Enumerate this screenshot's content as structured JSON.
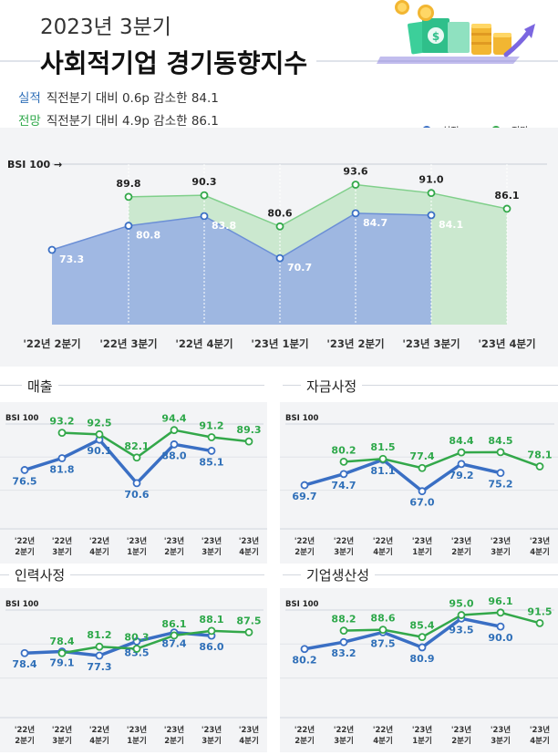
{
  "header": {
    "title_line1": "2023년 3분기",
    "title_line2": "사회적기업 경기동향지수"
  },
  "summary": [
    {
      "label": "실적",
      "text": "직전분기 대비 0.6p 감소한 84.1"
    },
    {
      "label": "전망",
      "text": "직전분기 대비 4.9p 감소한 86.1"
    }
  ],
  "colors": {
    "actual": "#3a6fc4",
    "forecast": "#33a84a",
    "actual_label": "#2f6fb8",
    "forecast_label": "#2ea84a",
    "actual_area": "#9bb4e2",
    "forecast_area": "#cbe8cf",
    "panel_bg": "#f3f4f6"
  },
  "icons": [
    "money-stack-illustration-icon",
    "rising-arrow-icon",
    "coin-icon"
  ],
  "chart_data": [
    {
      "type": "area",
      "title": "",
      "baseline_label": "BSI 100 →",
      "categories": [
        "'22년 2분기",
        "'22년 3분기",
        "'22년 4분기",
        "'23년 1분기",
        "'23년 2분기",
        "'23년 3분기",
        "'23년 4분기"
      ],
      "series": [
        {
          "name": "실적",
          "values": [
            73.3,
            80.8,
            83.8,
            70.7,
            84.7,
            84.1,
            null
          ]
        },
        {
          "name": "전망",
          "values": [
            null,
            89.8,
            90.3,
            80.6,
            93.6,
            91.0,
            86.1
          ]
        }
      ],
      "legend": "top-right",
      "ylim": [
        50,
        100
      ]
    },
    {
      "type": "line",
      "title": "매출",
      "baseline_label": "BSI 100",
      "categories": [
        "'22년 2분기",
        "'22년 3분기",
        "'22년 4분기",
        "'23년 1분기",
        "'23년 2분기",
        "'23년 3분기",
        "'23년 4분기"
      ],
      "series": [
        {
          "name": "실적",
          "values": [
            76.5,
            81.8,
            90.1,
            70.6,
            88.0,
            85.1,
            null
          ]
        },
        {
          "name": "전망",
          "values": [
            null,
            93.2,
            92.5,
            82.1,
            94.4,
            91.2,
            89.3
          ]
        }
      ],
      "ylim": [
        55,
        100
      ]
    },
    {
      "type": "line",
      "title": "자금사정",
      "baseline_label": "BSI 100",
      "categories": [
        "'22년 2분기",
        "'22년 3분기",
        "'22년 4분기",
        "'23년 1분기",
        "'23년 2분기",
        "'23년 3분기",
        "'23년 4분기"
      ],
      "series": [
        {
          "name": "실적",
          "values": [
            69.7,
            74.7,
            81.1,
            67.0,
            79.2,
            75.2,
            null
          ]
        },
        {
          "name": "전망",
          "values": [
            null,
            80.2,
            81.5,
            77.4,
            84.4,
            84.5,
            78.1
          ]
        }
      ],
      "ylim": [
        55,
        100
      ]
    },
    {
      "type": "line",
      "title": "인력사정",
      "baseline_label": "BSI 100",
      "categories": [
        "'22년 2분기",
        "'22년 3분기",
        "'22년 4분기",
        "'23년 1분기",
        "'23년 2분기",
        "'23년 3분기",
        "'23년 4분기"
      ],
      "series": [
        {
          "name": "실적",
          "values": [
            78.4,
            79.1,
            77.3,
            83.5,
            87.4,
            86.0,
            null
          ]
        },
        {
          "name": "전망",
          "values": [
            null,
            78.4,
            81.2,
            80.3,
            86.1,
            88.1,
            87.5
          ]
        }
      ],
      "ylim": [
        55,
        100
      ]
    },
    {
      "type": "line",
      "title": "기업생산성",
      "baseline_label": "BSI 100",
      "categories": [
        "'22년 2분기",
        "'22년 3분기",
        "'22년 4분기",
        "'23년 1분기",
        "'23년 2분기",
        "'23년 3분기",
        "'23년 4분기"
      ],
      "series": [
        {
          "name": "실적",
          "values": [
            80.2,
            83.2,
            87.5,
            80.9,
            93.5,
            90.0,
            null
          ]
        },
        {
          "name": "전망",
          "values": [
            null,
            88.2,
            88.6,
            85.4,
            95.0,
            96.1,
            91.5
          ]
        }
      ],
      "ylim": [
        55,
        100
      ]
    }
  ]
}
